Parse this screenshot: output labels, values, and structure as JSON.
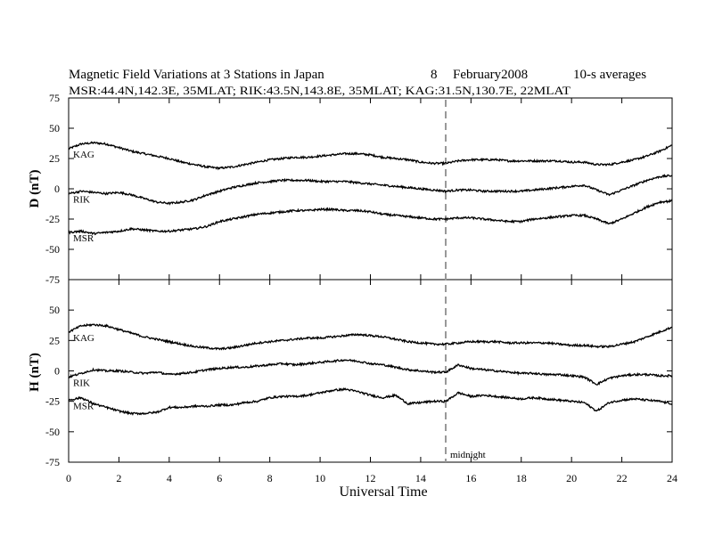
{
  "chart_data": [
    {
      "type": "line",
      "title": "Magnetic Field Variations at 3 Stations in Japan",
      "date_day": "8",
      "date_month_year": "February2008",
      "averaging": "10-s averages",
      "subtitle": "MSR:44.4N,142.3E, 35MLAT;  RIK:43.5N,143.8E, 35MLAT;  KAG:31.5N,130.7E, 22MLAT",
      "ylabel": "D (nT)",
      "xlabel": "Universal Time",
      "xlim": [
        0,
        24
      ],
      "ylim": [
        -75,
        75
      ],
      "yticks": [
        "75",
        "50",
        "25",
        "0",
        "-25",
        "-50",
        "-75"
      ],
      "xticks": [
        "0",
        "2",
        "4",
        "6",
        "8",
        "10",
        "12",
        "14",
        "16",
        "18",
        "20",
        "22",
        "24"
      ],
      "annotation_x": 15,
      "series": [
        {
          "name": "KAG",
          "x": [
            0,
            0.5,
            1,
            1.5,
            2,
            2.5,
            3,
            3.5,
            4,
            4.5,
            5,
            5.5,
            6,
            6.5,
            7,
            7.5,
            8,
            8.5,
            9,
            9.5,
            10,
            10.5,
            11,
            11.5,
            12,
            12.5,
            13,
            13.5,
            14,
            14.5,
            15,
            15.5,
            16,
            16.5,
            17,
            17.5,
            18,
            18.5,
            19,
            19.5,
            20,
            20.5,
            21,
            21.5,
            22,
            22.5,
            23,
            23.5,
            24
          ],
          "values": [
            33,
            37,
            38,
            37,
            34,
            31,
            29,
            27,
            25,
            22,
            20,
            18,
            17,
            18,
            20,
            22,
            24,
            25,
            26,
            26,
            27,
            28,
            29,
            29,
            28,
            26,
            25,
            24,
            22,
            21,
            21,
            23,
            24,
            24,
            24,
            23,
            23,
            23,
            23,
            23,
            22,
            22,
            20,
            20,
            22,
            24,
            27,
            31,
            36
          ]
        },
        {
          "name": "RIK",
          "x": [
            0,
            0.5,
            1,
            1.5,
            2,
            2.5,
            3,
            3.5,
            4,
            4.5,
            5,
            5.5,
            6,
            6.5,
            7,
            7.5,
            8,
            8.5,
            9,
            9.5,
            10,
            10.5,
            11,
            11.5,
            12,
            12.5,
            13,
            13.5,
            14,
            14.5,
            15,
            15.5,
            16,
            16.5,
            17,
            17.5,
            18,
            18.5,
            19,
            19.5,
            20,
            20.5,
            21,
            21.5,
            22,
            22.5,
            23,
            23.5,
            24
          ],
          "values": [
            -4,
            -2,
            -3,
            -4,
            -3,
            -5,
            -8,
            -11,
            -12,
            -11,
            -9,
            -5,
            -2,
            1,
            3,
            5,
            6,
            7,
            7,
            7,
            6,
            6,
            6,
            5,
            4,
            3,
            2,
            1,
            0,
            -1,
            -2,
            -1,
            -1,
            -2,
            -2,
            -2,
            -2,
            -1,
            0,
            1,
            2,
            3,
            -1,
            -5,
            -1,
            3,
            7,
            10,
            11
          ]
        },
        {
          "name": "MSR",
          "x": [
            0,
            0.5,
            1,
            1.5,
            2,
            2.5,
            3,
            3.5,
            4,
            4.5,
            5,
            5.5,
            6,
            6.5,
            7,
            7.5,
            8,
            8.5,
            9,
            9.5,
            10,
            10.5,
            11,
            11.5,
            12,
            12.5,
            13,
            13.5,
            14,
            14.5,
            15,
            15.5,
            16,
            16.5,
            17,
            17.5,
            18,
            18.5,
            19,
            19.5,
            20,
            20.5,
            21,
            21.5,
            22,
            22.5,
            23,
            23.5,
            24
          ],
          "values": [
            -36,
            -35,
            -37,
            -36,
            -35,
            -33,
            -34,
            -35,
            -35,
            -34,
            -33,
            -31,
            -27,
            -25,
            -23,
            -21,
            -20,
            -19,
            -18,
            -18,
            -17,
            -17,
            -18,
            -18,
            -19,
            -21,
            -22,
            -23,
            -24,
            -25,
            -25,
            -24,
            -24,
            -25,
            -26,
            -27,
            -27,
            -25,
            -24,
            -23,
            -22,
            -22,
            -25,
            -29,
            -25,
            -20,
            -15,
            -11,
            -10
          ]
        }
      ]
    },
    {
      "type": "line",
      "ylabel": "H (nT)",
      "xlabel": "Universal Time",
      "xlim": [
        0,
        24
      ],
      "ylim": [
        -75,
        75
      ],
      "yticks": [
        "50",
        "25",
        "0",
        "-25",
        "-50",
        "-75"
      ],
      "xticks": [
        "0",
        "2",
        "4",
        "6",
        "8",
        "10",
        "12",
        "14",
        "16",
        "18",
        "20",
        "22",
        "24"
      ],
      "annotation": "midnight",
      "annotation_x": 15,
      "series": [
        {
          "name": "KAG",
          "x": [
            0,
            0.5,
            1,
            1.5,
            2,
            2.5,
            3,
            3.5,
            4,
            4.5,
            5,
            5.5,
            6,
            6.5,
            7,
            7.5,
            8,
            8.5,
            9,
            9.5,
            10,
            10.5,
            11,
            11.5,
            12,
            12.5,
            13,
            13.5,
            14,
            14.5,
            15,
            15.5,
            16,
            16.5,
            17,
            17.5,
            18,
            18.5,
            19,
            19.5,
            20,
            20.5,
            21,
            21.5,
            22,
            22.5,
            23,
            23.5,
            24
          ],
          "values": [
            32,
            37,
            38,
            37,
            34,
            31,
            28,
            26,
            24,
            22,
            20,
            19,
            18,
            19,
            21,
            23,
            24,
            25,
            26,
            27,
            27,
            28,
            29,
            30,
            29,
            28,
            26,
            24,
            23,
            22,
            22,
            23,
            24,
            24,
            24,
            23,
            23,
            23,
            23,
            22,
            21,
            21,
            20,
            20,
            22,
            24,
            28,
            32,
            36
          ]
        },
        {
          "name": "RIK",
          "x": [
            0,
            0.5,
            1,
            1.5,
            2,
            2.5,
            3,
            3.5,
            4,
            4.5,
            5,
            5.5,
            6,
            6.5,
            7,
            7.5,
            8,
            8.5,
            9,
            9.5,
            10,
            10.5,
            11,
            11.5,
            12,
            12.5,
            13,
            13.5,
            14,
            14.5,
            15,
            15.5,
            16,
            16.5,
            17,
            17.5,
            18,
            18.5,
            19,
            19.5,
            20,
            20.5,
            21,
            21.5,
            22,
            22.5,
            23,
            23.5,
            24
          ],
          "values": [
            -5,
            -2,
            1,
            0,
            0,
            -1,
            -2,
            -1,
            -3,
            -2,
            -1,
            1,
            2,
            3,
            3,
            4,
            5,
            6,
            5,
            6,
            7,
            8,
            9,
            8,
            6,
            5,
            3,
            1,
            0,
            -1,
            -1,
            5,
            2,
            1,
            0,
            -1,
            -2,
            -2,
            -3,
            -3,
            -4,
            -5,
            -11,
            -6,
            -4,
            -3,
            -3,
            -4,
            -4
          ]
        },
        {
          "name": "MSR",
          "x": [
            0,
            0.5,
            1,
            1.5,
            2,
            2.5,
            3,
            3.5,
            4,
            4.5,
            5,
            5.5,
            6,
            6.5,
            7,
            7.5,
            8,
            8.5,
            9,
            9.5,
            10,
            10.5,
            11,
            11.5,
            12,
            12.5,
            13,
            13.5,
            14,
            14.5,
            15,
            15.5,
            16,
            16.5,
            17,
            17.5,
            18,
            18.5,
            19,
            19.5,
            20,
            20.5,
            21,
            21.5,
            22,
            22.5,
            23,
            23.5,
            24
          ],
          "values": [
            -24,
            -22,
            -27,
            -30,
            -33,
            -35,
            -35,
            -34,
            -30,
            -30,
            -29,
            -29,
            -28,
            -28,
            -26,
            -25,
            -22,
            -21,
            -21,
            -20,
            -18,
            -16,
            -15,
            -17,
            -20,
            -22,
            -20,
            -27,
            -26,
            -25,
            -25,
            -18,
            -21,
            -20,
            -21,
            -22,
            -23,
            -22,
            -23,
            -24,
            -25,
            -26,
            -33,
            -26,
            -24,
            -23,
            -24,
            -25,
            -27
          ]
        }
      ]
    }
  ]
}
